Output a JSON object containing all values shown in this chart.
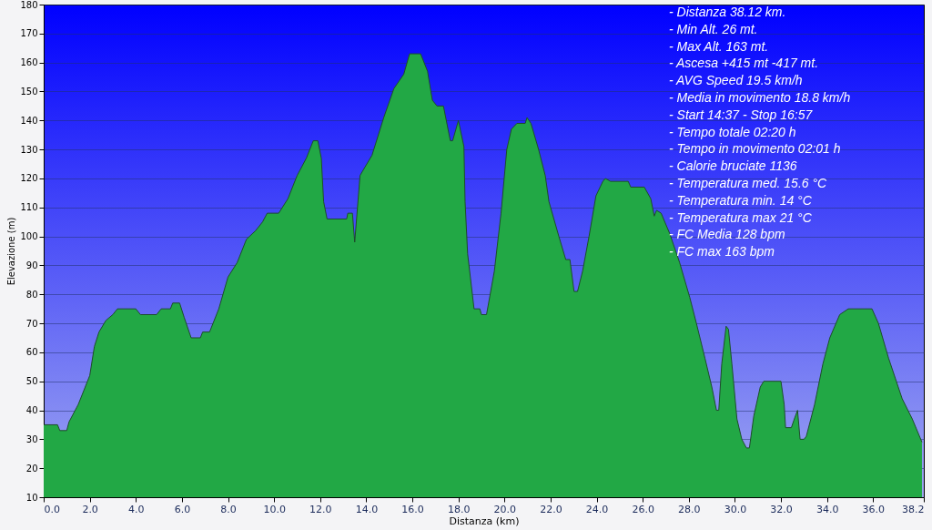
{
  "chart_data": {
    "type": "area",
    "xlabel": "Distanza   (km)",
    "ylabel": "Elevazione (m)",
    "xlim": [
      0,
      38.2
    ],
    "xticks": [
      {
        "value": 0,
        "label": "0.0"
      },
      {
        "value": 2,
        "label": "2.0"
      },
      {
        "value": 4,
        "label": "4.0"
      },
      {
        "value": 6,
        "label": "6.0"
      },
      {
        "value": 8,
        "label": "8.0"
      },
      {
        "value": 10,
        "label": "10.0"
      },
      {
        "value": 12,
        "label": "12.0"
      },
      {
        "value": 14,
        "label": "14.0"
      },
      {
        "value": 16,
        "label": "16.0"
      },
      {
        "value": 18,
        "label": "18.0"
      },
      {
        "value": 20,
        "label": "20.0"
      },
      {
        "value": 22,
        "label": "22.0"
      },
      {
        "value": 24,
        "label": "24.0"
      },
      {
        "value": 26,
        "label": "26.0"
      },
      {
        "value": 28,
        "label": "28.0"
      },
      {
        "value": 30,
        "label": "30.0"
      },
      {
        "value": 32,
        "label": "32.0"
      },
      {
        "value": 34,
        "label": "34.0"
      },
      {
        "value": 36,
        "label": "36.0"
      },
      38.2
    ],
    "ylim": [
      10,
      180
    ],
    "yticks": [
      10,
      20,
      30,
      40,
      50,
      60,
      70,
      80,
      90,
      100,
      110,
      120,
      130,
      140,
      150,
      160,
      170,
      180
    ],
    "grid": "y",
    "series": [
      {
        "color": "#22a845",
        "x": [
          0,
          0.6,
          0.7,
          1.0,
          1.1,
          1.5,
          2.0,
          2.2,
          2.4,
          2.7,
          3.0,
          3.2,
          4.0,
          4.2,
          4.9,
          5.1,
          5.5,
          5.6,
          5.9,
          6.1,
          6.4,
          6.8,
          6.9,
          7.2,
          7.6,
          8.0,
          8.4,
          8.8,
          9.2,
          9.5,
          9.7,
          10.2,
          10.6,
          11.0,
          11.4,
          11.7,
          11.9,
          12.05,
          12.15,
          12.3,
          13.15,
          13.2,
          13.4,
          13.5,
          13.73,
          13.95,
          14.25,
          14.76,
          15.2,
          15.63,
          15.88,
          16.36,
          16.66,
          16.87,
          17.07,
          17.35,
          17.65,
          17.75,
          18.0,
          18.24,
          18.29,
          18.4,
          18.68,
          18.93,
          19.0,
          19.22,
          19.56,
          19.85,
          20.1,
          20.3,
          20.54,
          20.9,
          20.98,
          21.15,
          21.48,
          21.77,
          21.93,
          22.36,
          22.66,
          22.84,
          23.02,
          23.17,
          23.39,
          23.67,
          23.97,
          24.27,
          24.38,
          24.6,
          25.37,
          25.48,
          26.07,
          26.35,
          26.5,
          26.6,
          26.8,
          27.17,
          27.6,
          28.04,
          28.33,
          28.7,
          29.0,
          29.2,
          29.3,
          29.43,
          29.62,
          29.72,
          29.87,
          30.09,
          30.3,
          30.5,
          30.63,
          30.82,
          31.1,
          31.25,
          32.0,
          32.14,
          32.2,
          32.45,
          32.58,
          32.72,
          32.83,
          33.0,
          33.1,
          33.46,
          33.82,
          34.12,
          34.55,
          34.92,
          35.95,
          36.23,
          36.67,
          37.26,
          37.7,
          38.12
        ],
        "values": [
          35,
          35,
          33,
          33,
          36,
          42,
          52,
          62,
          67,
          71,
          73,
          75,
          75,
          73,
          73,
          75,
          75,
          77,
          77,
          72,
          65,
          65,
          67,
          67,
          75,
          86,
          91,
          99,
          102,
          105,
          108,
          108,
          113,
          121,
          127,
          133,
          133,
          127,
          112,
          106,
          106,
          108,
          108,
          98,
          121,
          124,
          128,
          141,
          151,
          156,
          163,
          163,
          157,
          147,
          145,
          145,
          133,
          133,
          140,
          131,
          112,
          94,
          75,
          75,
          73,
          73,
          88,
          108,
          130,
          137,
          139,
          139,
          141,
          139,
          130,
          121,
          112,
          100,
          92,
          92,
          81,
          81,
          88,
          100,
          114,
          119,
          120,
          119,
          119,
          117,
          117,
          113,
          107,
          109,
          108,
          101,
          91,
          79,
          70,
          58,
          48,
          40,
          40,
          56,
          69,
          68,
          56,
          37,
          30,
          27,
          27,
          38,
          48,
          50,
          50,
          42,
          34,
          34,
          37,
          40,
          30,
          30,
          31,
          42,
          56,
          65,
          73,
          75,
          75,
          70,
          58,
          44,
          37,
          29
        ]
      }
    ],
    "annotations": [
      "- Distanza 38.12 km.",
      "- Min Alt. 26 mt.",
      "- Max Alt. 163 mt.",
      "- Ascesa +415 mt -417 mt.",
      "- AVG Speed 19.5 km/h",
      "- Media in movimento 18.8 km/h",
      "- Start 14:37 - Stop 16:57",
      "- Tempo totale 02:20 h",
      "- Tempo in movimento 02:01 h",
      "- Calorie bruciate 1136",
      "- Temperatura med. 15.6 °C",
      "- Temperatura min. 14 °C",
      "- Temperatura max 21 °C",
      "- FC Media 128 bpm",
      "- FC max 163 bpm"
    ]
  }
}
